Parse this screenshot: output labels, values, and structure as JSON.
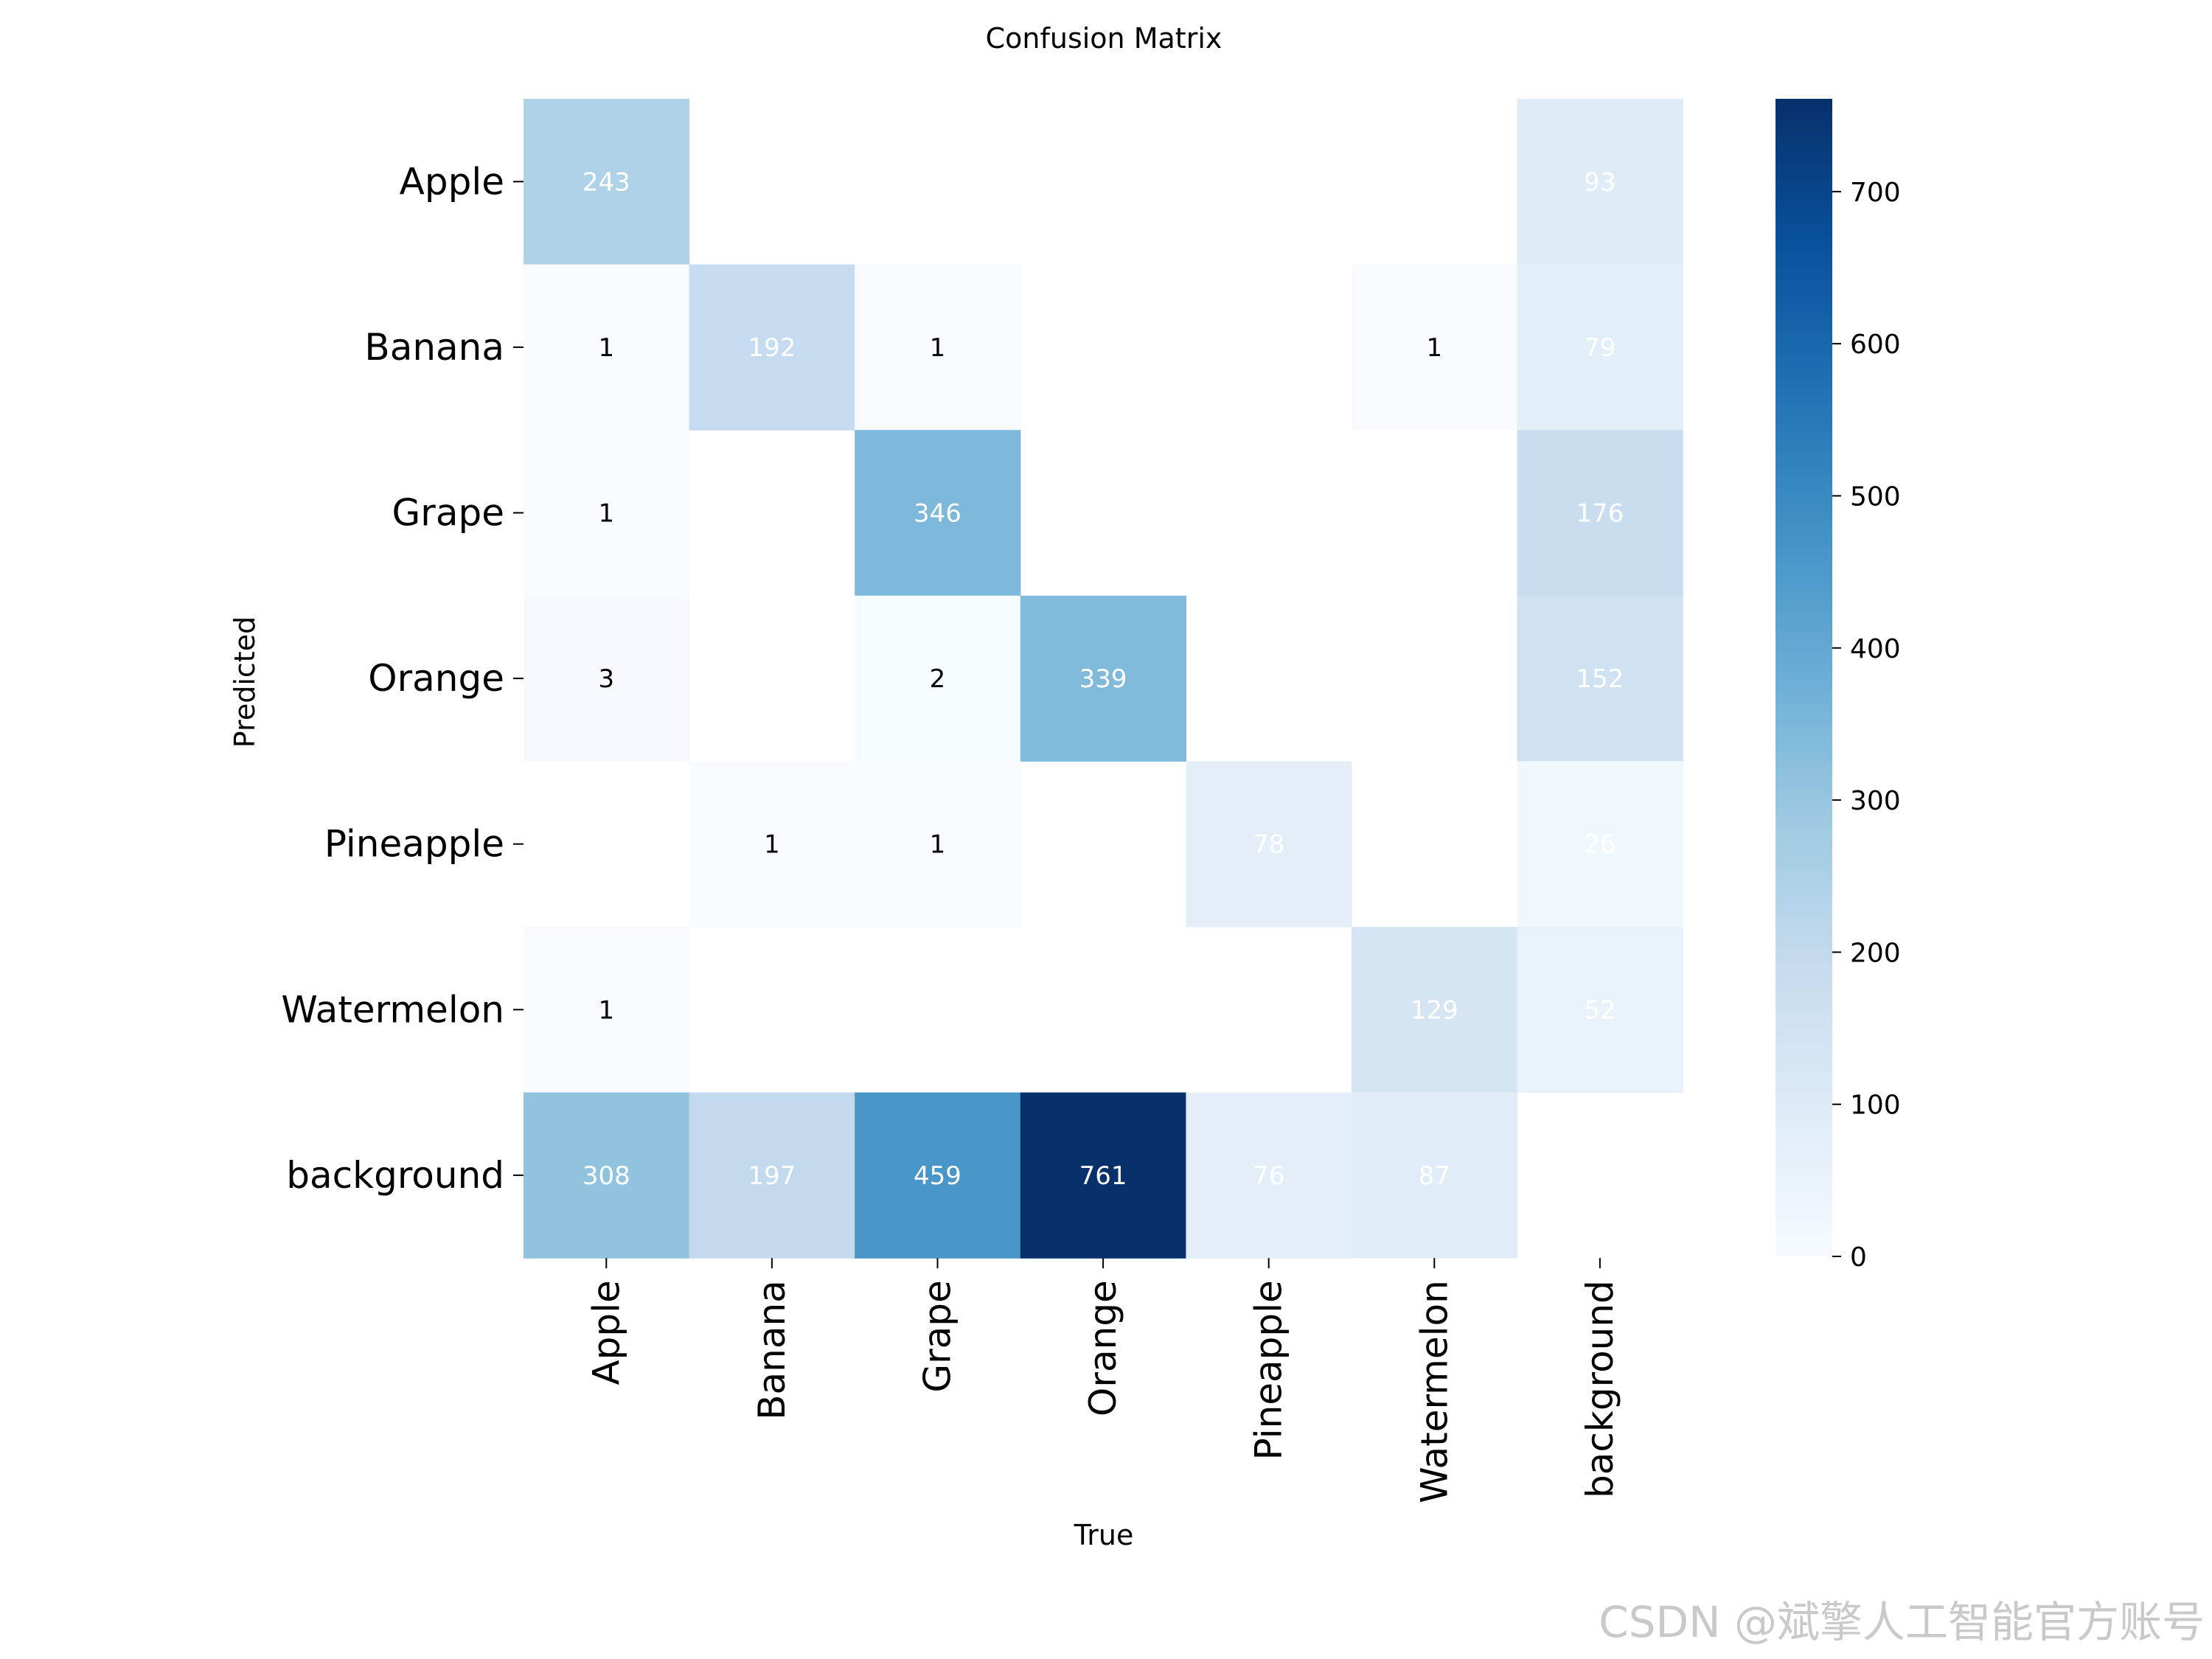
{
  "chart_data": {
    "type": "heatmap",
    "title": "Confusion Matrix",
    "xlabel": "True",
    "ylabel": "Predicted",
    "x_categories": [
      "Apple",
      "Banana",
      "Grape",
      "Orange",
      "Pineapple",
      "Watermelon",
      "background"
    ],
    "y_categories": [
      "Apple",
      "Banana",
      "Grape",
      "Orange",
      "Pineapple",
      "Watermelon",
      "background"
    ],
    "values": [
      [
        243,
        null,
        null,
        null,
        null,
        null,
        93
      ],
      [
        1,
        192,
        1,
        null,
        null,
        1,
        79
      ],
      [
        1,
        null,
        346,
        null,
        null,
        null,
        176
      ],
      [
        3,
        null,
        2,
        339,
        null,
        null,
        152
      ],
      [
        null,
        1,
        1,
        null,
        78,
        null,
        26
      ],
      [
        1,
        null,
        null,
        null,
        null,
        129,
        52
      ],
      [
        308,
        197,
        459,
        761,
        76,
        87,
        null
      ]
    ],
    "colormap": "Blues",
    "colorbar": {
      "min": 0,
      "max": 761,
      "ticks": [
        0,
        100,
        200,
        300,
        400,
        500,
        600,
        700
      ]
    },
    "grid": false
  },
  "watermark": "CSDN @斌擎人工智能官方账号"
}
